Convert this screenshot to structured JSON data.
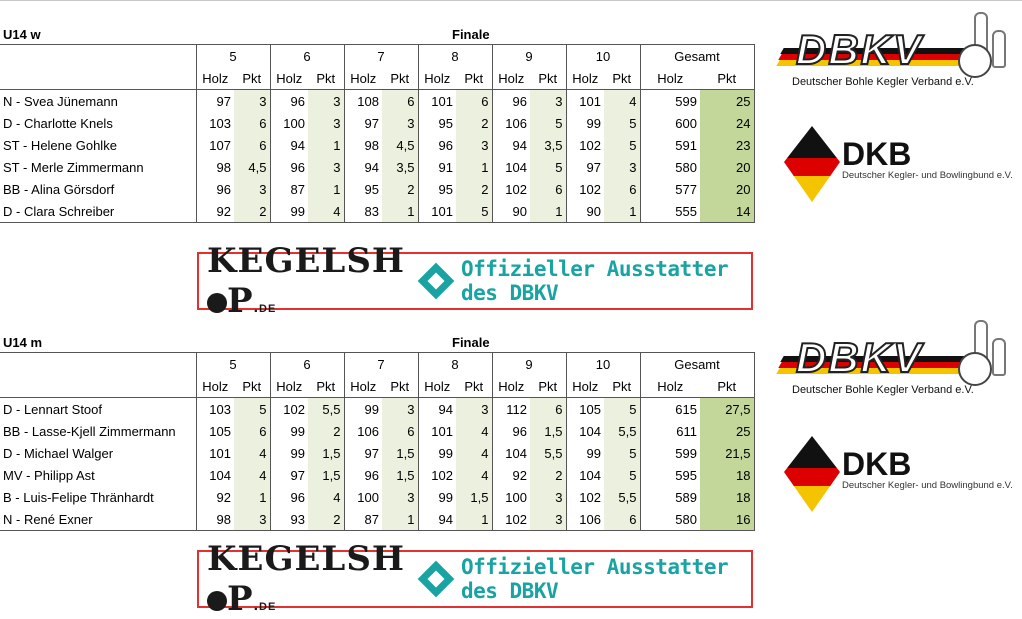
{
  "blocks": [
    {
      "title": "U14 w",
      "phase": "Finale",
      "rounds": [
        "5",
        "6",
        "7",
        "8",
        "9",
        "10"
      ],
      "total_label": "Gesamt",
      "sub_holz": "Holz",
      "sub_pkt": "Pkt",
      "rows": [
        {
          "name": "N - Svea Jünemann",
          "cells": [
            [
              "97",
              "3"
            ],
            [
              "96",
              "3"
            ],
            [
              "108",
              "6"
            ],
            [
              "101",
              "6"
            ],
            [
              "96",
              "3"
            ],
            [
              "101",
              "4"
            ]
          ],
          "total_holz": "599",
          "total_pkt": "25"
        },
        {
          "name": "D - Charlotte Knels",
          "cells": [
            [
              "103",
              "6"
            ],
            [
              "100",
              "3"
            ],
            [
              "97",
              "3"
            ],
            [
              "95",
              "2"
            ],
            [
              "106",
              "5"
            ],
            [
              "99",
              "5"
            ]
          ],
          "total_holz": "600",
          "total_pkt": "24"
        },
        {
          "name": "ST - Helene Gohlke",
          "cells": [
            [
              "107",
              "6"
            ],
            [
              "94",
              "1"
            ],
            [
              "98",
              "4,5"
            ],
            [
              "96",
              "3"
            ],
            [
              "94",
              "3,5"
            ],
            [
              "102",
              "5"
            ]
          ],
          "total_holz": "591",
          "total_pkt": "23"
        },
        {
          "name": "ST - Merle Zimmermann",
          "cells": [
            [
              "98",
              "4,5"
            ],
            [
              "96",
              "3"
            ],
            [
              "94",
              "3,5"
            ],
            [
              "91",
              "1"
            ],
            [
              "104",
              "5"
            ],
            [
              "97",
              "3"
            ]
          ],
          "total_holz": "580",
          "total_pkt": "20"
        },
        {
          "name": "BB - Alina Görsdorf",
          "cells": [
            [
              "96",
              "3"
            ],
            [
              "87",
              "1"
            ],
            [
              "95",
              "2"
            ],
            [
              "95",
              "2"
            ],
            [
              "102",
              "6"
            ],
            [
              "102",
              "6"
            ]
          ],
          "total_holz": "577",
          "total_pkt": "20"
        },
        {
          "name": "D - Clara Schreiber",
          "cells": [
            [
              "92",
              "2"
            ],
            [
              "99",
              "4"
            ],
            [
              "83",
              "1"
            ],
            [
              "101",
              "5"
            ],
            [
              "90",
              "1"
            ],
            [
              "90",
              "1"
            ]
          ],
          "total_holz": "555",
          "total_pkt": "14"
        }
      ]
    },
    {
      "title": "U14 m",
      "phase": "Finale",
      "rounds": [
        "5",
        "6",
        "7",
        "8",
        "9",
        "10"
      ],
      "total_label": "Gesamt",
      "sub_holz": "Holz",
      "sub_pkt": "Pkt",
      "rows": [
        {
          "name": "D - Lennart Stoof",
          "cells": [
            [
              "103",
              "5"
            ],
            [
              "102",
              "5,5"
            ],
            [
              "99",
              "3"
            ],
            [
              "94",
              "3"
            ],
            [
              "112",
              "6"
            ],
            [
              "105",
              "5"
            ]
          ],
          "total_holz": "615",
          "total_pkt": "27,5"
        },
        {
          "name": "BB - Lasse-Kjell Zimmermann",
          "cells": [
            [
              "105",
              "6"
            ],
            [
              "99",
              "2"
            ],
            [
              "106",
              "6"
            ],
            [
              "101",
              "4"
            ],
            [
              "96",
              "1,5"
            ],
            [
              "104",
              "5,5"
            ]
          ],
          "total_holz": "611",
          "total_pkt": "25"
        },
        {
          "name": "D - Michael Walger",
          "cells": [
            [
              "101",
              "4"
            ],
            [
              "99",
              "1,5"
            ],
            [
              "97",
              "1,5"
            ],
            [
              "99",
              "4"
            ],
            [
              "104",
              "5,5"
            ],
            [
              "99",
              "5"
            ]
          ],
          "total_holz": "599",
          "total_pkt": "21,5"
        },
        {
          "name": "MV - Philipp Ast",
          "cells": [
            [
              "104",
              "4"
            ],
            [
              "97",
              "1,5"
            ],
            [
              "96",
              "1,5"
            ],
            [
              "102",
              "4"
            ],
            [
              "92",
              "2"
            ],
            [
              "104",
              "5"
            ]
          ],
          "total_holz": "595",
          "total_pkt": "18"
        },
        {
          "name": "B - Luis-Felipe Thränhardt",
          "cells": [
            [
              "92",
              "1"
            ],
            [
              "96",
              "4"
            ],
            [
              "100",
              "3"
            ],
            [
              "99",
              "1,5"
            ],
            [
              "100",
              "3"
            ],
            [
              "102",
              "5,5"
            ]
          ],
          "total_holz": "589",
          "total_pkt": "18"
        },
        {
          "name": "N - René Exner",
          "cells": [
            [
              "98",
              "3"
            ],
            [
              "93",
              "2"
            ],
            [
              "87",
              "1"
            ],
            [
              "94",
              "1"
            ],
            [
              "102",
              "3"
            ],
            [
              "106",
              "6"
            ]
          ],
          "total_holz": "580",
          "total_pkt": "16"
        }
      ]
    }
  ],
  "banner": {
    "brand_pre": "KEGELSH",
    "brand_post": "P",
    "brand_tld": ".de",
    "slogan": "Offizieller Ausstatter des DBKV"
  },
  "logos": {
    "dbkv_letters": "DBKV",
    "dbkv_sub": "Deutscher Bohle Kegler Verband e.V.",
    "dkb_letters": "DKB",
    "dkb_sub": "Deutscher Kegler- und Bowlingbund e.V."
  },
  "colors": {
    "pkt_bg": "#ebf1de",
    "total_pkt_bg": "#c4d79b",
    "banner_border": "#e53030",
    "banner_accent": "#1aa3a3"
  }
}
